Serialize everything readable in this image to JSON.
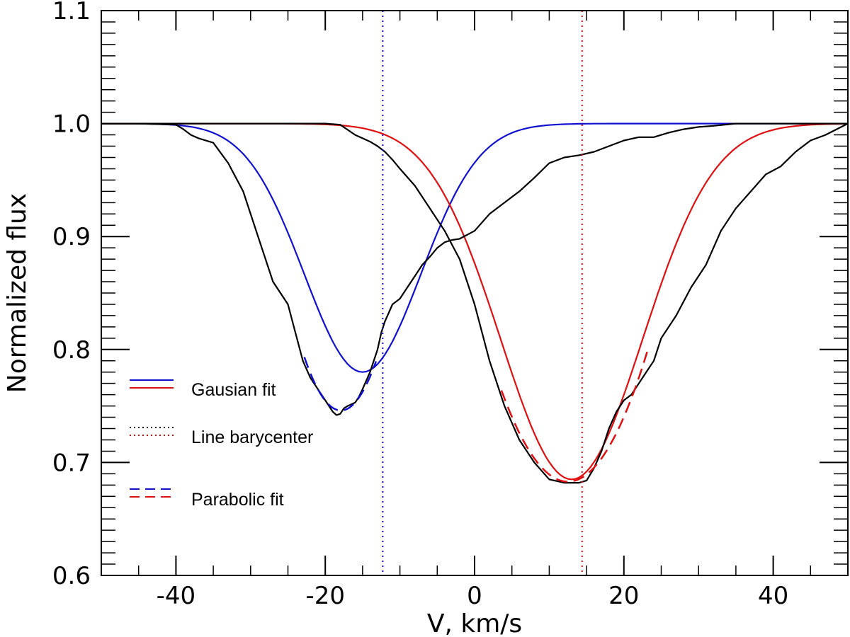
{
  "chart_data": {
    "type": "line",
    "title": "",
    "xlabel": "V, km/s",
    "ylabel": "Normalized flux",
    "xlim": [
      -50,
      50
    ],
    "ylim": [
      0.6,
      1.1
    ],
    "xticks": [
      -40,
      -20,
      0,
      20,
      40
    ],
    "xtick_labels": [
      "-40",
      "-20",
      "0",
      "20",
      "40"
    ],
    "yticks": [
      0.6,
      0.7,
      0.8,
      0.9,
      1.0,
      1.1
    ],
    "ytick_labels": [
      "0.6",
      "0.7",
      "0.8",
      "0.9",
      "1.0",
      "1.1"
    ],
    "grid": false,
    "legend_position": "lower-left",
    "legend": [
      {
        "label": "Gausian fit",
        "style": "solid",
        "colors": [
          "#1010d0",
          "#e01010"
        ]
      },
      {
        "label": "Line barycenter",
        "style": "dotted",
        "colors": [
          "#000000",
          "#e01010"
        ]
      },
      {
        "label": "Parabolic fit",
        "style": "dashed",
        "colors": [
          "#1010d0",
          "#e01010"
        ]
      }
    ],
    "colors": {
      "blue": "#1010d0",
      "red": "#e01010",
      "black": "#000000"
    },
    "series": [
      {
        "name": "Observed profile (left component)",
        "color": "#000000",
        "style": "solid",
        "x": [
          -50,
          -45,
          -40,
          -39,
          -38,
          -37,
          -35,
          -33,
          -31,
          -29,
          -27,
          -25,
          -24,
          -23,
          -22,
          -21,
          -20,
          -19,
          -18.5,
          -18,
          -17.5,
          -17,
          -16,
          -15.5,
          -15,
          -14,
          -13,
          -12.5,
          -12,
          -11,
          -10,
          -9,
          -8,
          -7,
          -6,
          -5,
          -4,
          -3,
          -2,
          0,
          2,
          4,
          6,
          8,
          10,
          12,
          14,
          16,
          18,
          20,
          22,
          24,
          26,
          28,
          30,
          32,
          35,
          40,
          45,
          50
        ],
        "y": [
          1.0,
          1.0,
          0.999,
          0.995,
          0.99,
          0.987,
          0.983,
          0.965,
          0.94,
          0.9,
          0.86,
          0.84,
          0.815,
          0.79,
          0.775,
          0.765,
          0.755,
          0.745,
          0.742,
          0.743,
          0.748,
          0.75,
          0.753,
          0.758,
          0.765,
          0.78,
          0.8,
          0.815,
          0.825,
          0.84,
          0.845,
          0.855,
          0.865,
          0.875,
          0.882,
          0.89,
          0.895,
          0.897,
          0.898,
          0.905,
          0.92,
          0.93,
          0.94,
          0.952,
          0.965,
          0.97,
          0.972,
          0.975,
          0.98,
          0.985,
          0.988,
          0.988,
          0.992,
          0.995,
          0.997,
          0.998,
          1.0,
          1.0,
          1.0,
          1.0
        ]
      },
      {
        "name": "Observed profile (right component)",
        "color": "#000000",
        "style": "solid",
        "x": [
          -50,
          -40,
          -30,
          -25,
          -20,
          -18,
          -16,
          -14,
          -13,
          -12,
          -11,
          -10,
          -8,
          -6,
          -4,
          -2,
          0,
          2,
          4,
          6,
          8,
          10,
          12,
          14,
          15,
          16,
          17,
          18,
          19,
          20,
          21,
          22,
          23,
          24,
          25,
          27,
          29,
          31,
          33,
          35,
          37,
          39,
          41,
          43,
          45,
          47,
          50
        ],
        "y": [
          1.0,
          1.0,
          1.0,
          1.0,
          1.0,
          0.999,
          0.99,
          0.984,
          0.98,
          0.975,
          0.968,
          0.96,
          0.945,
          0.925,
          0.905,
          0.88,
          0.84,
          0.79,
          0.75,
          0.72,
          0.7,
          0.685,
          0.682,
          0.682,
          0.684,
          0.695,
          0.71,
          0.73,
          0.745,
          0.755,
          0.76,
          0.77,
          0.78,
          0.79,
          0.81,
          0.83,
          0.855,
          0.875,
          0.905,
          0.925,
          0.94,
          0.955,
          0.962,
          0.975,
          0.985,
          0.99,
          1.0
        ]
      },
      {
        "name": "Gaussian fit (blue)",
        "color": "#1010d0",
        "style": "solid",
        "gauss": {
          "center": -15.0,
          "depth": 0.22,
          "sigma": 7.8,
          "x_range": [
            -50,
            50
          ]
        }
      },
      {
        "name": "Gaussian fit (red)",
        "color": "#e01010",
        "style": "solid",
        "gauss": {
          "center": 13.0,
          "depth": 0.315,
          "sigma": 9.5,
          "x_range": [
            -50,
            50
          ]
        }
      },
      {
        "name": "Parabolic fit (blue)",
        "color": "#1010d0",
        "style": "dashed",
        "parabola": {
          "vertex_x": -17.9,
          "vertex_y": 0.746,
          "a": 0.00197,
          "x_range": [
            -22.8,
            -13.2
          ]
        }
      },
      {
        "name": "Parabolic fit (red)",
        "color": "#e01010",
        "style": "dashed",
        "parabola": {
          "vertex_x": 12.5,
          "vertex_y": 0.683,
          "a": 0.00102,
          "x_range": [
            3.6,
            23.2
          ]
        }
      },
      {
        "name": "Line barycenter (blue)",
        "color": "#1010d0",
        "style": "dotted",
        "vline": -12.3
      },
      {
        "name": "Line barycenter (red)",
        "color": "#e01010",
        "style": "dotted",
        "vline": 14.4
      }
    ]
  }
}
